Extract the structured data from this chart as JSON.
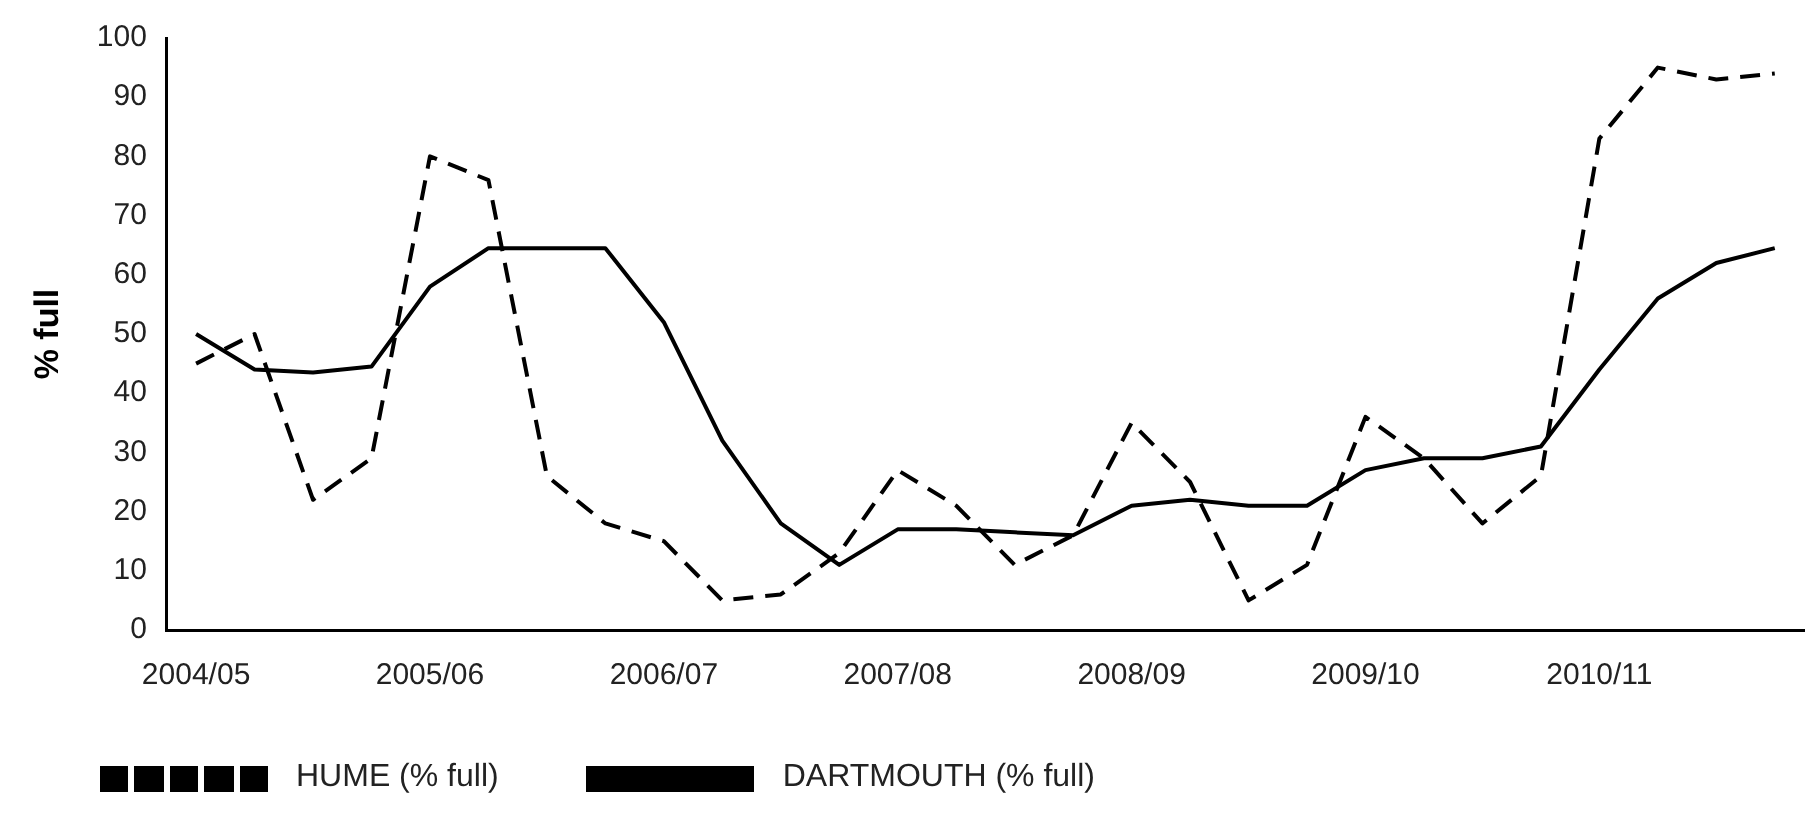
{
  "chart_data": {
    "type": "line",
    "ylabel": "% full",
    "categories": [
      "2004/05",
      null,
      null,
      null,
      "2005/06",
      null,
      null,
      null,
      "2006/07",
      null,
      null,
      null,
      "2007/08",
      null,
      null,
      null,
      "2008/09",
      null,
      null,
      null,
      "2009/10",
      null,
      null,
      null,
      "2010/11",
      null,
      null,
      null
    ],
    "series": [
      {
        "name": "HUME (% full)",
        "color": "#000000",
        "line_style": "dashed",
        "values": [
          45,
          50,
          22,
          29,
          80,
          76,
          26,
          18,
          15,
          5,
          6,
          13,
          27,
          21,
          11,
          16,
          35,
          25,
          5,
          11,
          36,
          29,
          18,
          26,
          83,
          95,
          93,
          94
        ]
      },
      {
        "name": "DARTMOUTH (% full)",
        "color": "#000000",
        "line_style": "solid",
        "values": [
          50,
          44,
          43.5,
          44.5,
          58,
          64.5,
          64.5,
          64.5,
          52,
          32,
          18,
          11,
          17,
          17,
          16.5,
          16,
          21,
          22,
          21,
          21,
          27,
          29,
          29,
          31,
          44,
          56,
          62,
          64.5
        ]
      }
    ],
    "ylim": [
      0,
      100
    ],
    "yticks": [
      0,
      10,
      20,
      30,
      40,
      50,
      60,
      70,
      80,
      90,
      100
    ],
    "grid": false,
    "legend": "bottom left",
    "marker": "none"
  }
}
